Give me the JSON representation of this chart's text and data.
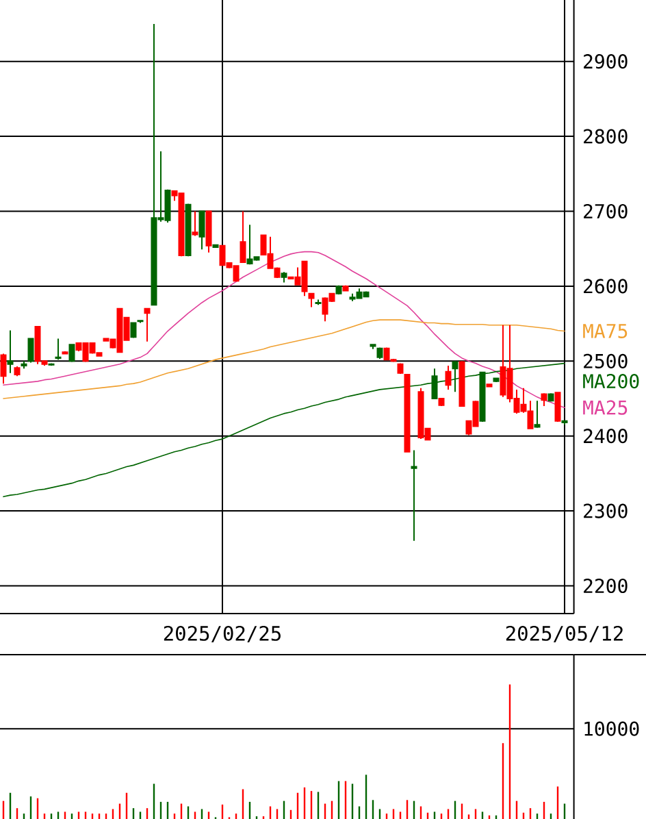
{
  "chart_data": [
    {
      "type": "candlestick",
      "categories": [
        null,
        null,
        null,
        null,
        null,
        null,
        null,
        null,
        null,
        null,
        null,
        null,
        null,
        null,
        null,
        null,
        null,
        null,
        null,
        null,
        null,
        null,
        null,
        null,
        null,
        null,
        null,
        null,
        null,
        null,
        null,
        null,
        "2025/02/25",
        null,
        null,
        null,
        null,
        null,
        null,
        null,
        null,
        null,
        null,
        null,
        null,
        null,
        null,
        null,
        null,
        null,
        null,
        null,
        null,
        null,
        null,
        null,
        null,
        null,
        null,
        null,
        null,
        null,
        null,
        null,
        null,
        null,
        null,
        null,
        null,
        null,
        null,
        null,
        null,
        null,
        null,
        null,
        null,
        null,
        null,
        null,
        null,
        null,
        "2025/05/12"
      ],
      "ohlc": [
        [
          2508,
          2510,
          2470,
          2480
        ],
        [
          2496,
          2541,
          2484,
          2500
        ],
        [
          2491,
          2493,
          2480,
          2482
        ],
        [
          2494,
          2500,
          2490,
          2496
        ],
        [
          2500,
          2531,
          2498,
          2530
        ],
        [
          2546,
          2547,
          2496,
          2500
        ],
        [
          2500,
          2501,
          2494,
          2496
        ],
        [
          2495,
          2497,
          2494,
          2496
        ],
        [
          2504,
          2530,
          2502,
          2505
        ],
        [
          2512,
          2513,
          2509,
          2510
        ],
        [
          2500,
          2522,
          2499,
          2522
        ],
        [
          2524,
          2525,
          2513,
          2515
        ],
        [
          2524,
          2525,
          2499,
          2500
        ],
        [
          2524,
          2525,
          2510,
          2511
        ],
        [
          2511,
          2512,
          2506,
          2507
        ],
        [
          2530,
          2531,
          2526,
          2527
        ],
        [
          2529,
          2530,
          2517,
          2518
        ],
        [
          2570,
          2571,
          2511,
          2512
        ],
        [
          2558,
          2559,
          2527,
          2528
        ],
        [
          2532,
          2552,
          2531,
          2551
        ],
        [
          2553,
          2555,
          2551,
          2554
        ],
        [
          2570,
          2571,
          2526,
          2564
        ],
        [
          2575,
          2950,
          2574,
          2691
        ],
        [
          2689,
          2780,
          2686,
          2691
        ],
        [
          2688,
          2729,
          2685,
          2728
        ],
        [
          2727,
          2728,
          2714,
          2721
        ],
        [
          2724,
          2725,
          2640,
          2641
        ],
        [
          2641,
          2710,
          2640,
          2709
        ],
        [
          2672,
          2700,
          2667,
          2669
        ],
        [
          2666,
          2700,
          2649,
          2700
        ],
        [
          2700,
          2701,
          2645,
          2654
        ],
        [
          2652,
          2656,
          2651,
          2655
        ],
        [
          2654,
          2655,
          2627,
          2628
        ],
        [
          2631,
          2632,
          2624,
          2625
        ],
        [
          2627,
          2628,
          2606,
          2607
        ],
        [
          2659,
          2700,
          2631,
          2632
        ],
        [
          2630,
          2682,
          2629,
          2636
        ],
        [
          2635,
          2640,
          2634,
          2639
        ],
        [
          2668,
          2669,
          2641,
          2642
        ],
        [
          2643,
          2666,
          2623,
          2624
        ],
        [
          2624,
          2625,
          2611,
          2612
        ],
        [
          2612,
          2619,
          2605,
          2617
        ],
        [
          2612,
          2613,
          2609,
          2610
        ],
        [
          2612,
          2625,
          2601,
          2602
        ],
        [
          2633,
          2634,
          2587,
          2593
        ],
        [
          2590,
          2591,
          2572,
          2584
        ],
        [
          2577,
          2582,
          2575,
          2578
        ],
        [
          2584,
          2585,
          2553,
          2563
        ],
        [
          2590,
          2591,
          2579,
          2580
        ],
        [
          2590,
          2601,
          2589,
          2600
        ],
        [
          2600,
          2601,
          2593,
          2594
        ],
        [
          2583,
          2590,
          2580,
          2585
        ],
        [
          2584,
          2597,
          2583,
          2592
        ],
        [
          2586,
          2593,
          2585,
          2592
        ],
        [
          2520,
          2522,
          2516,
          2522
        ],
        [
          2505,
          2518,
          2503,
          2517
        ],
        [
          2517,
          2518,
          2501,
          2502
        ],
        [
          2502,
          2503,
          2499,
          2500
        ],
        [
          2496,
          2497,
          2483,
          2484
        ],
        [
          2482,
          2483,
          2378,
          2379
        ],
        [
          2357,
          2381,
          2260,
          2359
        ],
        [
          2459,
          2464,
          2396,
          2398
        ],
        [
          2410,
          2411,
          2394,
          2395
        ],
        [
          2450,
          2490,
          2449,
          2480
        ],
        [
          2450,
          2451,
          2440,
          2441
        ],
        [
          2486,
          2494,
          2462,
          2468
        ],
        [
          2490,
          2500,
          2459,
          2499
        ],
        [
          2499,
          2500,
          2439,
          2440
        ],
        [
          2420,
          2421,
          2401,
          2403
        ],
        [
          2446,
          2447,
          2412,
          2413
        ],
        [
          2420,
          2486,
          2419,
          2485
        ],
        [
          2469,
          2470,
          2465,
          2466
        ],
        [
          2473,
          2478,
          2472,
          2477
        ],
        [
          2492,
          2548,
          2452,
          2455
        ],
        [
          2490,
          2548,
          2445,
          2450
        ],
        [
          2450,
          2462,
          2430,
          2432
        ],
        [
          2442,
          2464,
          2431,
          2433
        ],
        [
          2433,
          2447,
          2409,
          2410
        ],
        [
          2412,
          2447,
          2411,
          2415
        ],
        [
          2456,
          2457,
          2440,
          2448
        ],
        [
          2447,
          2457,
          2446,
          2456
        ],
        [
          2458,
          2459,
          2419,
          2420
        ],
        [
          2418,
          2421,
          2415,
          2420
        ]
      ],
      "colors": [
        "#ff0000",
        "#006400",
        "#ff0000",
        "#006400",
        "#006400",
        "#ff0000",
        "#ff0000",
        "#006400",
        "#006400",
        "#ff0000",
        "#006400",
        "#ff0000",
        "#ff0000",
        "#ff0000",
        "#ff0000",
        "#ff0000",
        "#ff0000",
        "#ff0000",
        "#ff0000",
        "#006400",
        "#006400",
        "#ff0000",
        "#006400",
        "#006400",
        "#006400",
        "#ff0000",
        "#ff0000",
        "#006400",
        "#ff0000",
        "#006400",
        "#ff0000",
        "#006400",
        "#ff0000",
        "#ff0000",
        "#ff0000",
        "#ff0000",
        "#006400",
        "#006400",
        "#ff0000",
        "#ff0000",
        "#ff0000",
        "#006400",
        "#ff0000",
        "#ff0000",
        "#ff0000",
        "#ff0000",
        "#006400",
        "#ff0000",
        "#ff0000",
        "#006400",
        "#ff0000",
        "#006400",
        "#006400",
        "#006400",
        "#006400",
        "#006400",
        "#ff0000",
        "#ff0000",
        "#ff0000",
        "#ff0000",
        "#006400",
        "#ff0000",
        "#ff0000",
        "#006400",
        "#ff0000",
        "#ff0000",
        "#006400",
        "#ff0000",
        "#ff0000",
        "#ff0000",
        "#006400",
        "#ff0000",
        "#006400",
        "#ff0000",
        "#ff0000",
        "#ff0000",
        "#ff0000",
        "#ff0000",
        "#006400",
        "#ff0000",
        "#006400",
        "#ff0000",
        "#006400"
      ],
      "series": [
        {
          "name": "MA25",
          "type": "line",
          "color": "#e0409a",
          "values": [
            2468,
            2469,
            2470,
            2471,
            2472,
            2473,
            2475,
            2476,
            2478,
            2480,
            2482,
            2484,
            2486,
            2488,
            2490,
            2492,
            2494,
            2496,
            2499,
            2502,
            2505,
            2510,
            2520,
            2530,
            2540,
            2548,
            2556,
            2564,
            2571,
            2578,
            2584,
            2589,
            2594,
            2600,
            2606,
            2612,
            2617,
            2622,
            2627,
            2632,
            2636,
            2640,
            2643,
            2645,
            2646,
            2646,
            2645,
            2641,
            2636,
            2631,
            2626,
            2620,
            2615,
            2610,
            2604,
            2598,
            2592,
            2586,
            2580,
            2574,
            2565,
            2555,
            2546,
            2536,
            2527,
            2518,
            2510,
            2504,
            2500,
            2497,
            2493,
            2490,
            2486,
            2480,
            2474,
            2467,
            2462,
            2457,
            2452,
            2448,
            2445,
            2441,
            2438
          ]
        },
        {
          "name": "MA75",
          "type": "line",
          "color": "#f0a030",
          "values": [
            2450,
            2451,
            2452,
            2453,
            2454,
            2455,
            2456,
            2457,
            2458,
            2459,
            2460,
            2461,
            2462,
            2463,
            2464,
            2465,
            2466,
            2467,
            2469,
            2470,
            2472,
            2475,
            2478,
            2481,
            2484,
            2486,
            2488,
            2490,
            2493,
            2496,
            2499,
            2502,
            2504,
            2506,
            2508,
            2510,
            2512,
            2514,
            2516,
            2519,
            2521,
            2523,
            2525,
            2527,
            2529,
            2531,
            2533,
            2535,
            2537,
            2540,
            2543,
            2546,
            2549,
            2552,
            2554,
            2555,
            2555,
            2555,
            2555,
            2554,
            2553,
            2552,
            2551,
            2551,
            2550,
            2550,
            2549,
            2549,
            2549,
            2549,
            2549,
            2548,
            2548,
            2548,
            2548,
            2548,
            2547,
            2546,
            2545,
            2544,
            2543,
            2541,
            2540
          ]
        },
        {
          "name": "MA200",
          "type": "line",
          "color": "#006400",
          "values": [
            2319,
            2321,
            2322,
            2324,
            2326,
            2328,
            2329,
            2331,
            2333,
            2335,
            2337,
            2340,
            2342,
            2345,
            2348,
            2350,
            2353,
            2356,
            2359,
            2361,
            2364,
            2367,
            2370,
            2373,
            2376,
            2379,
            2381,
            2384,
            2386,
            2389,
            2391,
            2394,
            2396,
            2400,
            2404,
            2408,
            2412,
            2416,
            2420,
            2424,
            2427,
            2430,
            2432,
            2435,
            2437,
            2440,
            2442,
            2445,
            2447,
            2449,
            2452,
            2454,
            2456,
            2458,
            2460,
            2462,
            2463,
            2464,
            2465,
            2466,
            2467,
            2468,
            2470,
            2471,
            2473,
            2474,
            2476,
            2478,
            2480,
            2481,
            2483,
            2484,
            2486,
            2487,
            2488,
            2490,
            2491,
            2492,
            2493,
            2494,
            2495,
            2496,
            2497
          ]
        }
      ],
      "ylim": [
        2163,
        2982
      ],
      "yticks": [
        2200,
        2300,
        2400,
        2500,
        2600,
        2700,
        2800,
        2900
      ],
      "grid": true
    },
    {
      "type": "bar",
      "categories": [
        null,
        null,
        null,
        null,
        null,
        null,
        null,
        null,
        null,
        null,
        null,
        null,
        null,
        null,
        null,
        null,
        null,
        null,
        null,
        null,
        null,
        null,
        null,
        null,
        null,
        null,
        null,
        null,
        null,
        null,
        null,
        null,
        null,
        null,
        null,
        null,
        null,
        null,
        null,
        null,
        null,
        null,
        null,
        null,
        null,
        null,
        null,
        null,
        null,
        null,
        null,
        null,
        null,
        null,
        null,
        null,
        null,
        null,
        null,
        null,
        null,
        null,
        null,
        null,
        null,
        null,
        null,
        null,
        null,
        null,
        null,
        null,
        null,
        null,
        null,
        null,
        null,
        null,
        null,
        null,
        null,
        null,
        null
      ],
      "values": [
        2000,
        2900,
        1200,
        600,
        2500,
        2300,
        600,
        600,
        800,
        800,
        600,
        800,
        800,
        600,
        600,
        600,
        1100,
        1700,
        2900,
        1200,
        800,
        1200,
        3900,
        1900,
        1900,
        600,
        1700,
        1400,
        800,
        1100,
        800,
        200,
        1600,
        200,
        600,
        3300,
        1900,
        300,
        300,
        1400,
        1100,
        2000,
        1000,
        2900,
        3500,
        3100,
        3000,
        1700,
        2000,
        4200,
        4200,
        3900,
        1400,
        4900,
        2100,
        1100,
        600,
        1100,
        800,
        2100,
        2000,
        1400,
        700,
        800,
        600,
        1100,
        2000,
        1700,
        500,
        1100,
        800,
        400,
        400,
        8400,
        14900,
        2000,
        700,
        1200,
        600,
        1900,
        600,
        3600,
        1700
      ],
      "colors": [
        "#ff0000",
        "#006400",
        "#ff0000",
        "#006400",
        "#006400",
        "#ff0000",
        "#ff0000",
        "#006400",
        "#006400",
        "#ff0000",
        "#006400",
        "#ff0000",
        "#ff0000",
        "#ff0000",
        "#ff0000",
        "#ff0000",
        "#ff0000",
        "#ff0000",
        "#ff0000",
        "#006400",
        "#006400",
        "#ff0000",
        "#006400",
        "#006400",
        "#006400",
        "#ff0000",
        "#ff0000",
        "#006400",
        "#ff0000",
        "#006400",
        "#ff0000",
        "#006400",
        "#ff0000",
        "#ff0000",
        "#ff0000",
        "#ff0000",
        "#006400",
        "#006400",
        "#ff0000",
        "#ff0000",
        "#ff0000",
        "#006400",
        "#ff0000",
        "#ff0000",
        "#ff0000",
        "#ff0000",
        "#006400",
        "#ff0000",
        "#ff0000",
        "#006400",
        "#ff0000",
        "#006400",
        "#006400",
        "#006400",
        "#006400",
        "#006400",
        "#ff0000",
        "#ff0000",
        "#ff0000",
        "#ff0000",
        "#006400",
        "#ff0000",
        "#ff0000",
        "#006400",
        "#ff0000",
        "#ff0000",
        "#006400",
        "#ff0000",
        "#ff0000",
        "#ff0000",
        "#006400",
        "#ff0000",
        "#006400",
        "#ff0000",
        "#ff0000",
        "#ff0000",
        "#ff0000",
        "#ff0000",
        "#006400",
        "#ff0000",
        "#006400",
        "#ff0000",
        "#006400"
      ],
      "ylim": [
        0,
        18200
      ],
      "yticks": [
        10000
      ],
      "grid": "y",
      "tick_labels": "y"
    }
  ]
}
